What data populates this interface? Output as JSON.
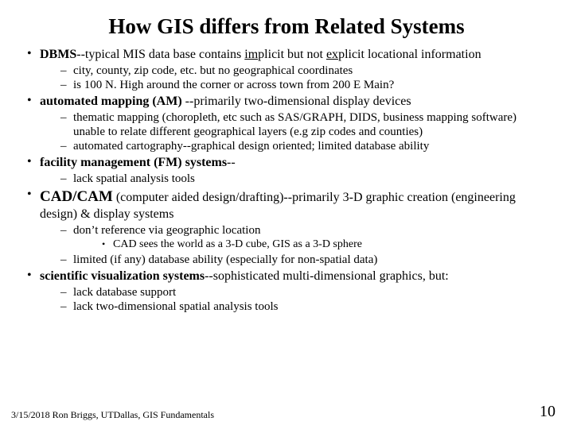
{
  "title": "How GIS differs from Related Systems",
  "items": [
    {
      "head_html": "<span class='bold'>DBMS</span>--typical MIS data base contains <span class='und'>im</span>plicit but not <span class='und'>ex</span>plicit locational information",
      "big": false,
      "sub": [
        {
          "text": "city, county, zip code, etc.  but no geographical coordinates"
        },
        {
          "text": "is 100 N. High around the corner or across town from 200 E Main?"
        }
      ]
    },
    {
      "head_html": "<span class='bold'>automated mapping (AM) </span>--primarily  two-dimensional display devices",
      "big": false,
      "sub": [
        {
          "text": "thematic mapping  (choropleth, etc such as  SAS/GRAPH, DIDS, business mapping software) unable to relate different geographical layers (e.g  zip codes and counties)"
        },
        {
          "text": "automated cartography--graphical design oriented; limited database ability"
        }
      ]
    },
    {
      "head_html": "<span class='bold'>facility management (FM) systems</span>--",
      "big": false,
      "sub": [
        {
          "text": "lack spatial analysis tools"
        }
      ]
    },
    {
      "head_html": "<span class='lead bold'>CAD/CAM</span> (computer aided design/drafting)--primarily  3-D graphic creation (engineering design) & display systems",
      "big": true,
      "sub": [
        {
          "text": "don’t reference via geographic location",
          "sub": [
            {
              "text": "CAD sees the world as a 3-D cube, GIS as a 3-D sphere"
            }
          ]
        },
        {
          "text": "limited (if any) database ability (especially for non-spatial data)"
        }
      ]
    },
    {
      "head_html": "<span class='bold'>scientific visualization systems</span>--sophisticated multi-dimensional graphics, but:",
      "big": false,
      "sub": [
        {
          "text": "lack database support"
        },
        {
          "text": "lack two-dimensional spatial analysis tools"
        }
      ]
    }
  ],
  "footer": "3/15/2018 Ron Briggs, UTDallas, GIS Fundamentals",
  "pagenum": "10",
  "colors": {
    "bg": "#ffffff",
    "text": "#000000"
  },
  "fonts": {
    "title_pt": 27,
    "body_pt": 16,
    "sub_pt": 15,
    "subsub_pt": 14,
    "footer_pt": 12,
    "pagenum_pt": 20
  }
}
